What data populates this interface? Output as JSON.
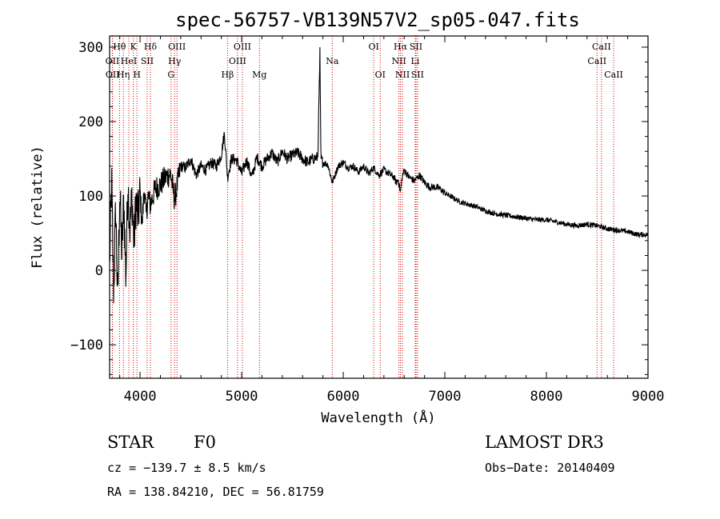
{
  "chart_data": {
    "type": "line",
    "title": "spec-56757-VB139N57V2_sp05-047.fits",
    "xlabel": "Wavelength (Å)",
    "ylabel": "Flux (relative)",
    "xlim": [
      3700,
      9000
    ],
    "ylim": [
      -145,
      315
    ],
    "xticks": [
      4000,
      5000,
      6000,
      7000,
      8000,
      9000
    ],
    "yticks": [
      -100,
      0,
      100,
      200,
      300
    ],
    "xtick_labels": [
      "4000",
      "5000",
      "6000",
      "7000",
      "8000",
      "9000"
    ],
    "ytick_labels": [
      "−100",
      "0",
      "100",
      "200",
      "300"
    ],
    "series": [
      {
        "name": "spectrum",
        "x": [
          3700,
          3720,
          3740,
          3760,
          3780,
          3800,
          3820,
          3840,
          3860,
          3880,
          3900,
          3920,
          3940,
          3960,
          3980,
          4000,
          4020,
          4040,
          4060,
          4080,
          4100,
          4150,
          4200,
          4250,
          4300,
          4340,
          4400,
          4450,
          4500,
          4550,
          4600,
          4650,
          4700,
          4750,
          4800,
          4830,
          4861,
          4900,
          4950,
          5000,
          5050,
          5100,
          5150,
          5200,
          5250,
          5300,
          5350,
          5400,
          5450,
          5500,
          5550,
          5600,
          5650,
          5700,
          5750,
          5770,
          5780,
          5800,
          5850,
          5892,
          5950,
          6000,
          6050,
          6100,
          6150,
          6200,
          6250,
          6300,
          6350,
          6400,
          6450,
          6500,
          6520,
          6540,
          6563,
          6580,
          6600,
          6650,
          6700,
          6750,
          6800,
          6850,
          6900,
          6950,
          7000,
          7050,
          7100,
          7150,
          7200,
          7300,
          7400,
          7500,
          7600,
          7700,
          7800,
          7900,
          8000,
          8100,
          8200,
          8300,
          8400,
          8500,
          8600,
          8700,
          8800,
          8900,
          9000
        ],
        "values": [
          10,
          118,
          -30,
          85,
          -45,
          110,
          20,
          95,
          -10,
          120,
          55,
          100,
          35,
          95,
          70,
          105,
          60,
          110,
          75,
          100,
          88,
          110,
          115,
          125,
          130,
          95,
          140,
          138,
          150,
          128,
          140,
          135,
          145,
          140,
          155,
          185,
          125,
          150,
          148,
          130,
          148,
          125,
          152,
          140,
          150,
          158,
          145,
          160,
          150,
          155,
          158,
          150,
          145,
          150,
          152,
          290,
          150,
          145,
          142,
          118,
          140,
          145,
          138,
          140,
          132,
          140,
          130,
          138,
          128,
          135,
          130,
          125,
          118,
          122,
          105,
          125,
          135,
          125,
          120,
          128,
          118,
          112,
          112,
          110,
          104,
          100,
          96,
          92,
          90,
          86,
          80,
          76,
          74,
          72,
          70,
          68,
          68,
          65,
          62,
          60,
          62,
          60,
          56,
          54,
          52,
          48,
          48
        ]
      }
    ],
    "emission_lines": [
      {
        "name": "Hθ",
        "wavelength": 3797,
        "row": 0
      },
      {
        "name": "OII",
        "wavelength": 3727,
        "row": 1
      },
      {
        "name": "OII",
        "wavelength": 3729,
        "row": 2
      },
      {
        "name": "HeI",
        "wavelength": 3889,
        "row": 1
      },
      {
        "name": "Hη",
        "wavelength": 3835,
        "row": 2
      },
      {
        "name": "K",
        "wavelength": 3934,
        "row": 0
      },
      {
        "name": "SII",
        "wavelength": 4070,
        "row": 1
      },
      {
        "name": "H",
        "wavelength": 3969,
        "row": 2
      },
      {
        "name": "Hδ",
        "wavelength": 4102,
        "row": 0
      },
      {
        "name": "OIII",
        "wavelength": 4363,
        "row": 0
      },
      {
        "name": "Hγ",
        "wavelength": 4340,
        "row": 1
      },
      {
        "name": "G",
        "wavelength": 4305,
        "row": 2
      },
      {
        "name": "OIII",
        "wavelength": 5007,
        "row": 0
      },
      {
        "name": "OIII",
        "wavelength": 4959,
        "row": 1
      },
      {
        "name": "Hβ",
        "wavelength": 4861,
        "row": 2
      },
      {
        "name": "Mg",
        "wavelength": 5175,
        "row": 2
      },
      {
        "name": "Na",
        "wavelength": 5892,
        "row": 1
      },
      {
        "name": "OI",
        "wavelength": 6300,
        "row": 0
      },
      {
        "name": "OI",
        "wavelength": 6364,
        "row": 2
      },
      {
        "name": "Hα",
        "wavelength": 6563,
        "row": 0
      },
      {
        "name": "NII",
        "wavelength": 6548,
        "row": 1
      },
      {
        "name": "NII",
        "wavelength": 6583,
        "row": 2
      },
      {
        "name": "SII",
        "wavelength": 6716,
        "row": 0
      },
      {
        "name": "Li",
        "wavelength": 6708,
        "row": 1
      },
      {
        "name": "SII",
        "wavelength": 6731,
        "row": 2
      },
      {
        "name": "CaII",
        "wavelength": 8542,
        "row": 0
      },
      {
        "name": "CaII",
        "wavelength": 8498,
        "row": 1
      },
      {
        "name": "CaII",
        "wavelength": 8662,
        "row": 2
      }
    ]
  },
  "info": {
    "object_class": "STAR",
    "subclass": "F0",
    "survey": "LAMOST DR3",
    "redshift": "cz = −139.7 ± 8.5 km/s",
    "obs_date": "Obs−Date: 20140409",
    "coords": "RA = 138.84210, DEC =  56.81759"
  },
  "colors": {
    "line_marker": "#cc0000",
    "spectrum": "#000000",
    "axes": "#000000"
  }
}
